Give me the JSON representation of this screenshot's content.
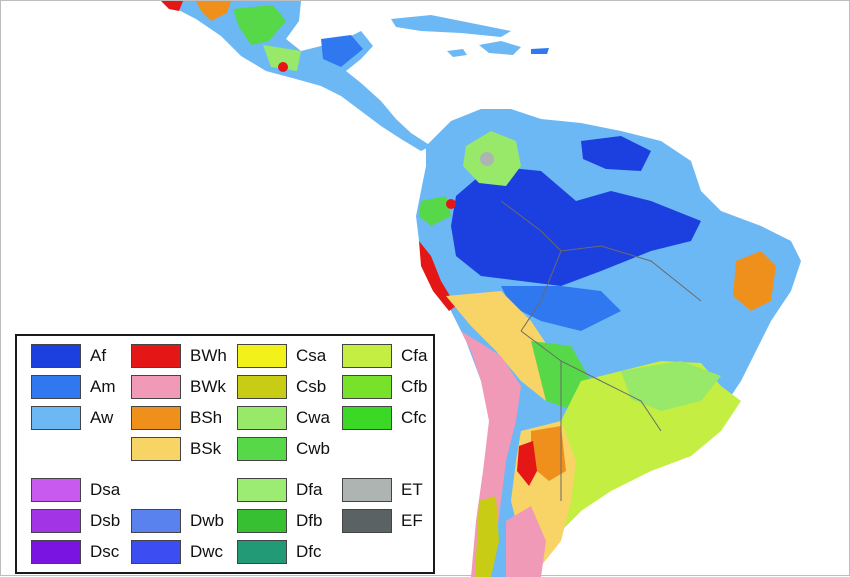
{
  "map": {
    "colors": {
      "ocean": "#ffffff",
      "Af": "#1c3fe0",
      "Am": "#2f78f0",
      "Aw": "#6cb8f4",
      "BWh": "#e41616",
      "BWk": "#f09ab8",
      "BSh": "#f0901c",
      "BSk": "#f8d466",
      "Csa": "#f2f21a",
      "Csb": "#c8cc14",
      "Cwa": "#98e86a",
      "Cwb": "#56d848",
      "Cfa": "#c4ee42",
      "Cfb": "#78e22a",
      "Cfc": "#3cd826",
      "ET": "#aeb4b2",
      "EF": "#5a6264"
    }
  },
  "legend": {
    "items": [
      {
        "code": "Af",
        "color": "#1c3fe0"
      },
      {
        "code": "Am",
        "color": "#2f78f0"
      },
      {
        "code": "Aw",
        "color": "#6cb8f4"
      },
      {
        "code": "BWh",
        "color": "#e41616"
      },
      {
        "code": "BWk",
        "color": "#f09ab8"
      },
      {
        "code": "BSh",
        "color": "#f0901c"
      },
      {
        "code": "BSk",
        "color": "#f8d466"
      },
      {
        "code": "Csa",
        "color": "#f2f21a"
      },
      {
        "code": "Csb",
        "color": "#c8cc14"
      },
      {
        "code": "Cwa",
        "color": "#98e86a"
      },
      {
        "code": "Cwb",
        "color": "#56d848"
      },
      {
        "code": "Cfa",
        "color": "#c4ee42"
      },
      {
        "code": "Cfb",
        "color": "#78e22a"
      },
      {
        "code": "Cfc",
        "color": "#3cd826"
      },
      {
        "code": "Dsa",
        "color": "#c85af0"
      },
      {
        "code": "Dsb",
        "color": "#a234e6"
      },
      {
        "code": "Dsc",
        "color": "#7a14e0"
      },
      {
        "code": "Dwb",
        "color": "#5a82ee"
      },
      {
        "code": "Dwc",
        "color": "#3c4ef2"
      },
      {
        "code": "Dfa",
        "color": "#9cec74"
      },
      {
        "code": "Dfb",
        "color": "#36c032"
      },
      {
        "code": "Dfc",
        "color": "#229a76"
      },
      {
        "code": "ET",
        "color": "#aeb4b2"
      },
      {
        "code": "EF",
        "color": "#5a6264"
      }
    ]
  }
}
